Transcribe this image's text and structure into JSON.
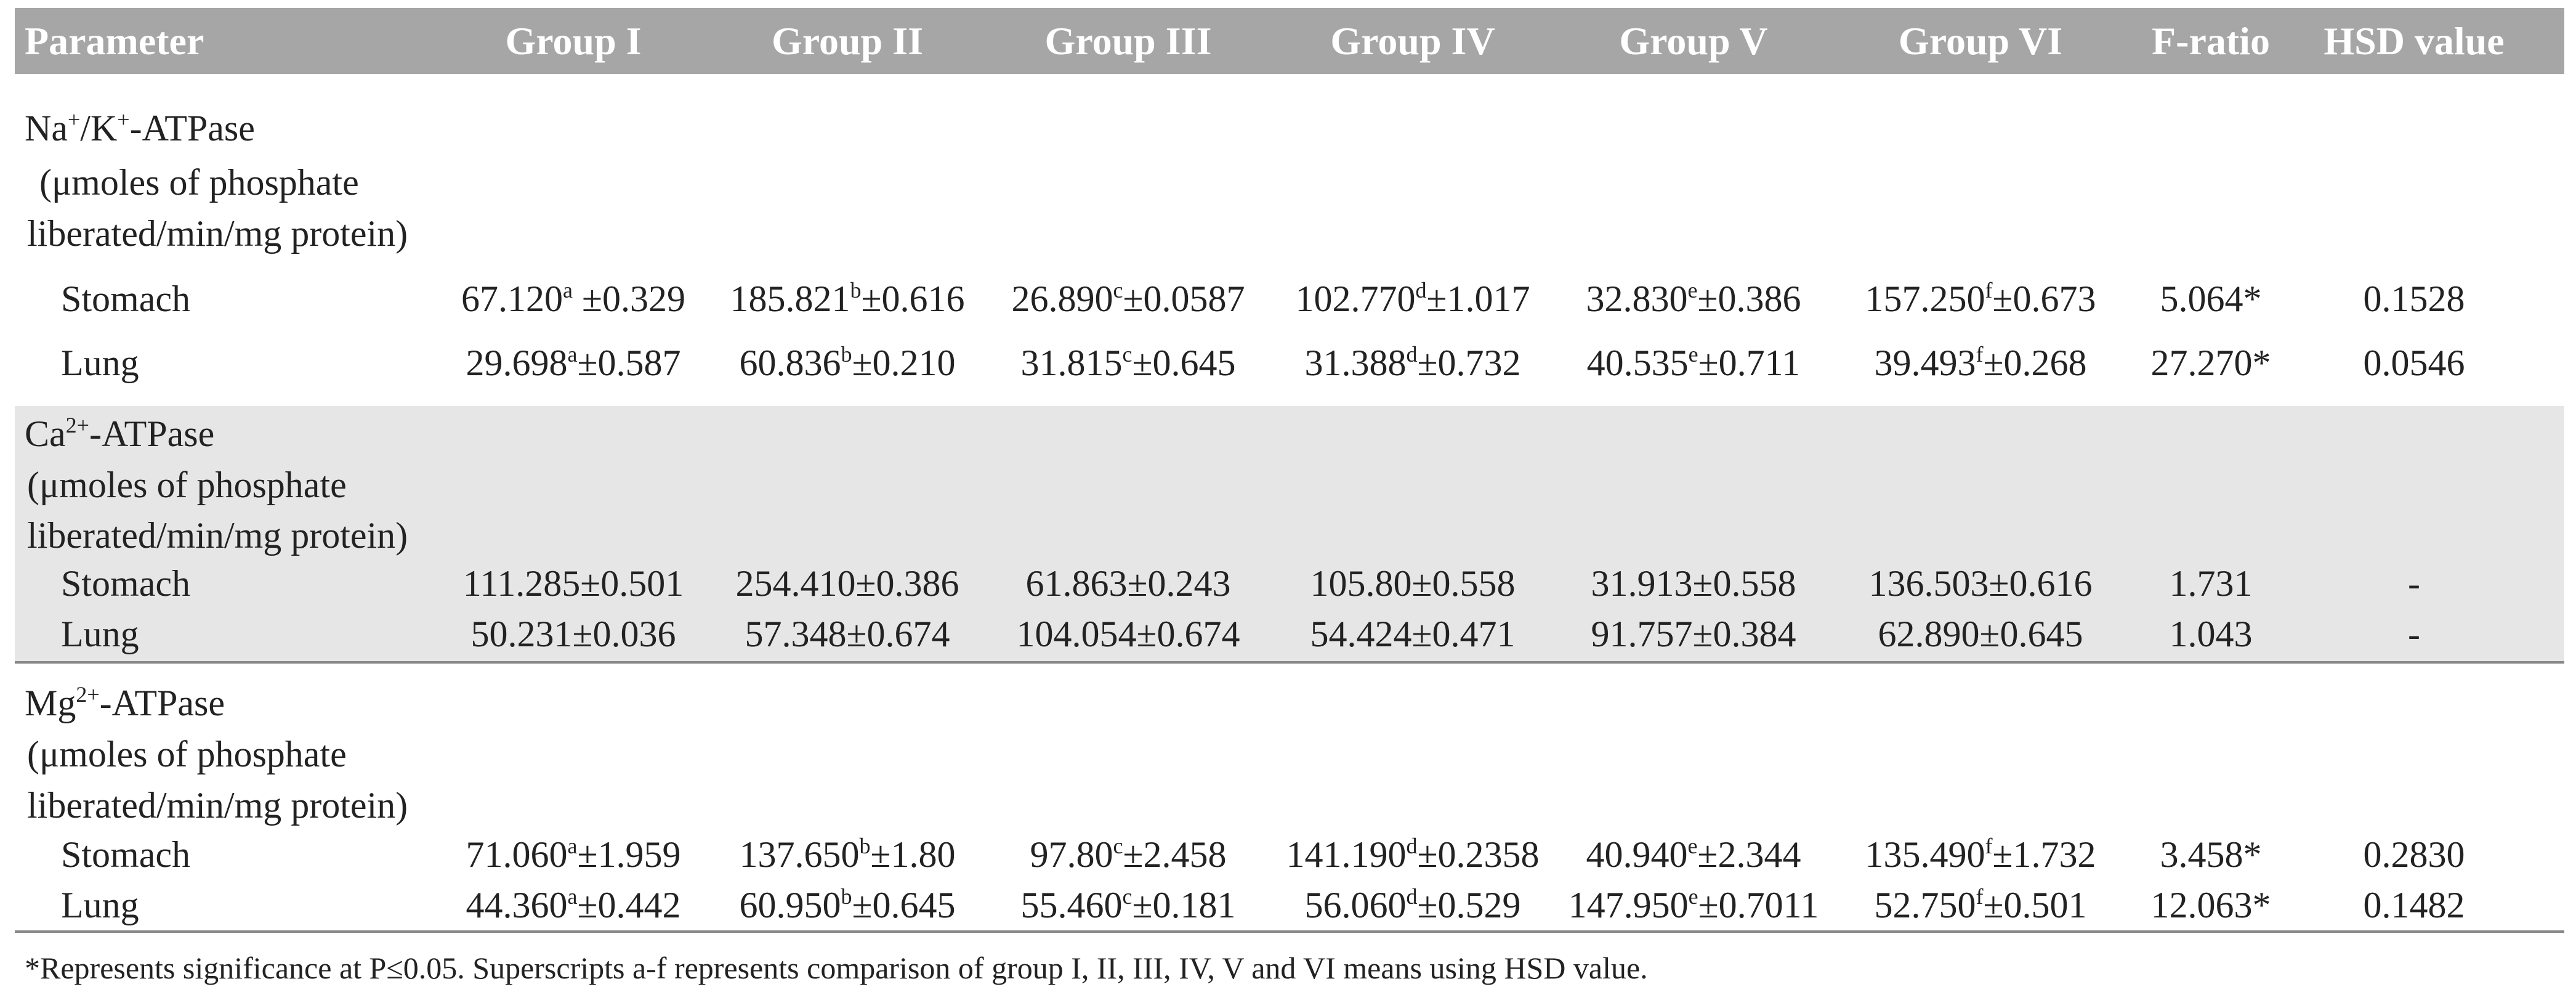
{
  "table": {
    "header": [
      "Parameter",
      "Group I",
      "Group II",
      "Group III",
      "Group IV",
      "Group V",
      "Group VI",
      "F-ratio",
      "HSD value"
    ],
    "sections": [
      {
        "name": [
          {
            "text": "Na"
          },
          {
            "sup": "+"
          },
          {
            "text": "/K"
          },
          {
            "sup": "+"
          },
          {
            "text": "-ATPase"
          }
        ],
        "unit": [
          "(μmoles of phosphate",
          "liberated/min/mg protein)"
        ],
        "rows": [
          {
            "label": "Stomach",
            "cells": [
              {
                "mean": "67.120",
                "sup": "a",
                "sd": " ±0.329"
              },
              {
                "mean": "185.821",
                "sup": "b",
                "sd": "±0.616"
              },
              {
                "mean": "26.890",
                "sup": "c",
                "sd": "±0.0587"
              },
              {
                "mean": "102.770",
                "sup": "d",
                "sd": "±1.017"
              },
              {
                "mean": "32.830",
                "sup": "e",
                "sd": "±0.386"
              },
              {
                "mean": "157.250",
                "sup": "f",
                "sd": "±0.673"
              }
            ],
            "f": "5.064*",
            "hsd": "0.1528"
          },
          {
            "label": "Lung",
            "cells": [
              {
                "mean": "29.698",
                "sup": "a",
                "sd": "±0.587"
              },
              {
                "mean": "60.836",
                "sup": "b",
                "sd": "±0.210"
              },
              {
                "mean": "31.815",
                "sup": "c",
                "sd": "±0.645"
              },
              {
                "mean": "31.388",
                "sup": "d",
                "sd": "±0.732"
              },
              {
                "mean": "40.535",
                "sup": "e",
                "sd": "±0.711"
              },
              {
                "mean": "39.493",
                "sup": "f",
                "sd": "±0.268"
              }
            ],
            "f": "27.270*",
            "hsd": "0.0546"
          }
        ]
      },
      {
        "name": [
          {
            "text": "Ca"
          },
          {
            "sup": "2+"
          },
          {
            "text": "-ATPase"
          }
        ],
        "unit": [
          "(μmoles of phosphate",
          "liberated/min/mg protein)"
        ],
        "rows": [
          {
            "label": "Stomach",
            "cells": [
              {
                "mean": "111.285",
                "sd": "±0.501"
              },
              {
                "mean": "254.410",
                "sd": "±0.386"
              },
              {
                "mean": "61.863",
                "sd": "±0.243"
              },
              {
                "mean": "105.80",
                "sd": "±0.558"
              },
              {
                "mean": "31.913",
                "sd": "±0.558"
              },
              {
                "mean": "136.503",
                "sd": "±0.616"
              }
            ],
            "f": "1.731",
            "hsd": "-"
          },
          {
            "label": "Lung",
            "cells": [
              {
                "mean": "50.231",
                "sd": "±0.036"
              },
              {
                "mean": "57.348",
                "sd": "±0.674"
              },
              {
                "mean": "104.054",
                "sd": "±0.674"
              },
              {
                "mean": "54.424",
                "sd": "±0.471"
              },
              {
                "mean": "91.757",
                "sd": "±0.384"
              },
              {
                "mean": "62.890",
                "sd": "±0.645"
              }
            ],
            "f": "1.043",
            "hsd": "-"
          }
        ]
      },
      {
        "name": [
          {
            "text": "Mg"
          },
          {
            "sup": "2+"
          },
          {
            "text": "-ATPase"
          }
        ],
        "unit": [
          "(μmoles of phosphate",
          "liberated/min/mg protein)"
        ],
        "rows": [
          {
            "label": "Stomach",
            "cells": [
              {
                "mean": "71.060",
                "sup": "a",
                "sd": "±1.959"
              },
              {
                "mean": "137.650",
                "sup": "b",
                "sd": "±1.80"
              },
              {
                "mean": "97.80",
                "sup": "c",
                "sd": "±2.458"
              },
              {
                "mean": "141.190",
                "sup": "d",
                "sd": "±0.2358"
              },
              {
                "mean": "40.940",
                "sup": "e",
                "sd": "±2.344"
              },
              {
                "mean": "135.490",
                "sup": "f",
                "sd": "±1.732"
              }
            ],
            "f": "3.458*",
            "hsd": "0.2830"
          },
          {
            "label": "Lung",
            "cells": [
              {
                "mean": "44.360",
                "sup": "a",
                "sd": "±0.442"
              },
              {
                "mean": "60.950",
                "sup": "b",
                "sd": "±0.645"
              },
              {
                "mean": "55.460",
                "sup": "c",
                "sd": "±0.181"
              },
              {
                "mean": "56.060",
                "sup": "d",
                "sd": "±0.529"
              },
              {
                "mean": "147.950",
                "sup": "e",
                "sd": "±0.7011"
              },
              {
                "mean": "52.750",
                "sup": "f",
                "sd": "±0.501"
              }
            ],
            "f": "12.063*",
            "hsd": "0.1482"
          }
        ]
      }
    ],
    "footnote": "*Represents significance at P≤0.05. Superscripts a-f represents comparison of group I, II, III, IV, V and VI means using HSD value."
  }
}
